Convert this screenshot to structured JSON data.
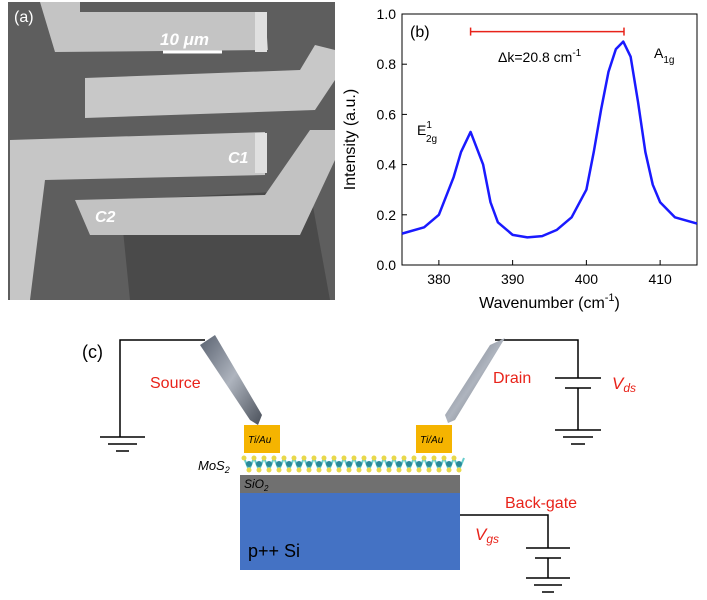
{
  "panel_a": {
    "label": "(a)",
    "scale_bar": "10 μm",
    "contacts": [
      "C1",
      "C2"
    ]
  },
  "chart_data": {
    "type": "line",
    "panel_label": "(b)",
    "x_label": {
      "text": "Wavenumber (cm",
      "sup": "-1",
      "end": ")"
    },
    "y_label": "Intensity (a.u.)",
    "x": [
      375,
      378,
      380,
      382,
      383,
      384.3,
      386,
      387,
      388,
      390,
      392,
      394,
      396,
      398,
      400,
      401,
      402,
      403,
      404,
      405,
      406,
      407,
      408,
      409,
      410,
      412,
      415
    ],
    "series": [
      {
        "color": "#1a1aff",
        "values": [
          0.125,
          0.15,
          0.2,
          0.35,
          0.45,
          0.53,
          0.4,
          0.25,
          0.17,
          0.12,
          0.11,
          0.115,
          0.14,
          0.19,
          0.3,
          0.45,
          0.62,
          0.77,
          0.86,
          0.89,
          0.83,
          0.65,
          0.45,
          0.32,
          0.25,
          0.19,
          0.165
        ]
      }
    ],
    "xlim": [
      375,
      415
    ],
    "xticks": [
      380,
      390,
      400,
      410
    ],
    "ylim": [
      0,
      1.0
    ],
    "yticks": [
      {
        "value": 0,
        "label": "0.0"
      },
      0.2,
      0.4,
      0.6,
      0.8,
      {
        "value": 1.0,
        "label": "1.0"
      }
    ],
    "delta_range": [
      384.3,
      405.1
    ],
    "delta_level": 0.93,
    "delta_color": "#e8231a",
    "delta_label": {
      "text": "Δk=20.8 cm",
      "sup": "-1"
    },
    "peak_labels": [
      {
        "base": "E",
        "sup": "1",
        "sub": "2g"
      },
      {
        "base": "A",
        "sub": "1g"
      }
    ]
  },
  "panel_c": {
    "label": "(c)",
    "source": "Source",
    "drain": "Drain",
    "back_gate": "Back-gate",
    "contacts": [
      "Ti/Au",
      "Ti/Au"
    ],
    "mos2": {
      "base": "MoS",
      "sub": "2"
    },
    "sio2": {
      "base": "SiO",
      "sub": "2"
    },
    "substrate": "p++ Si",
    "vds": {
      "base": "V",
      "sub": "ds"
    },
    "vgs": {
      "base": "V",
      "sub": "gs"
    }
  }
}
